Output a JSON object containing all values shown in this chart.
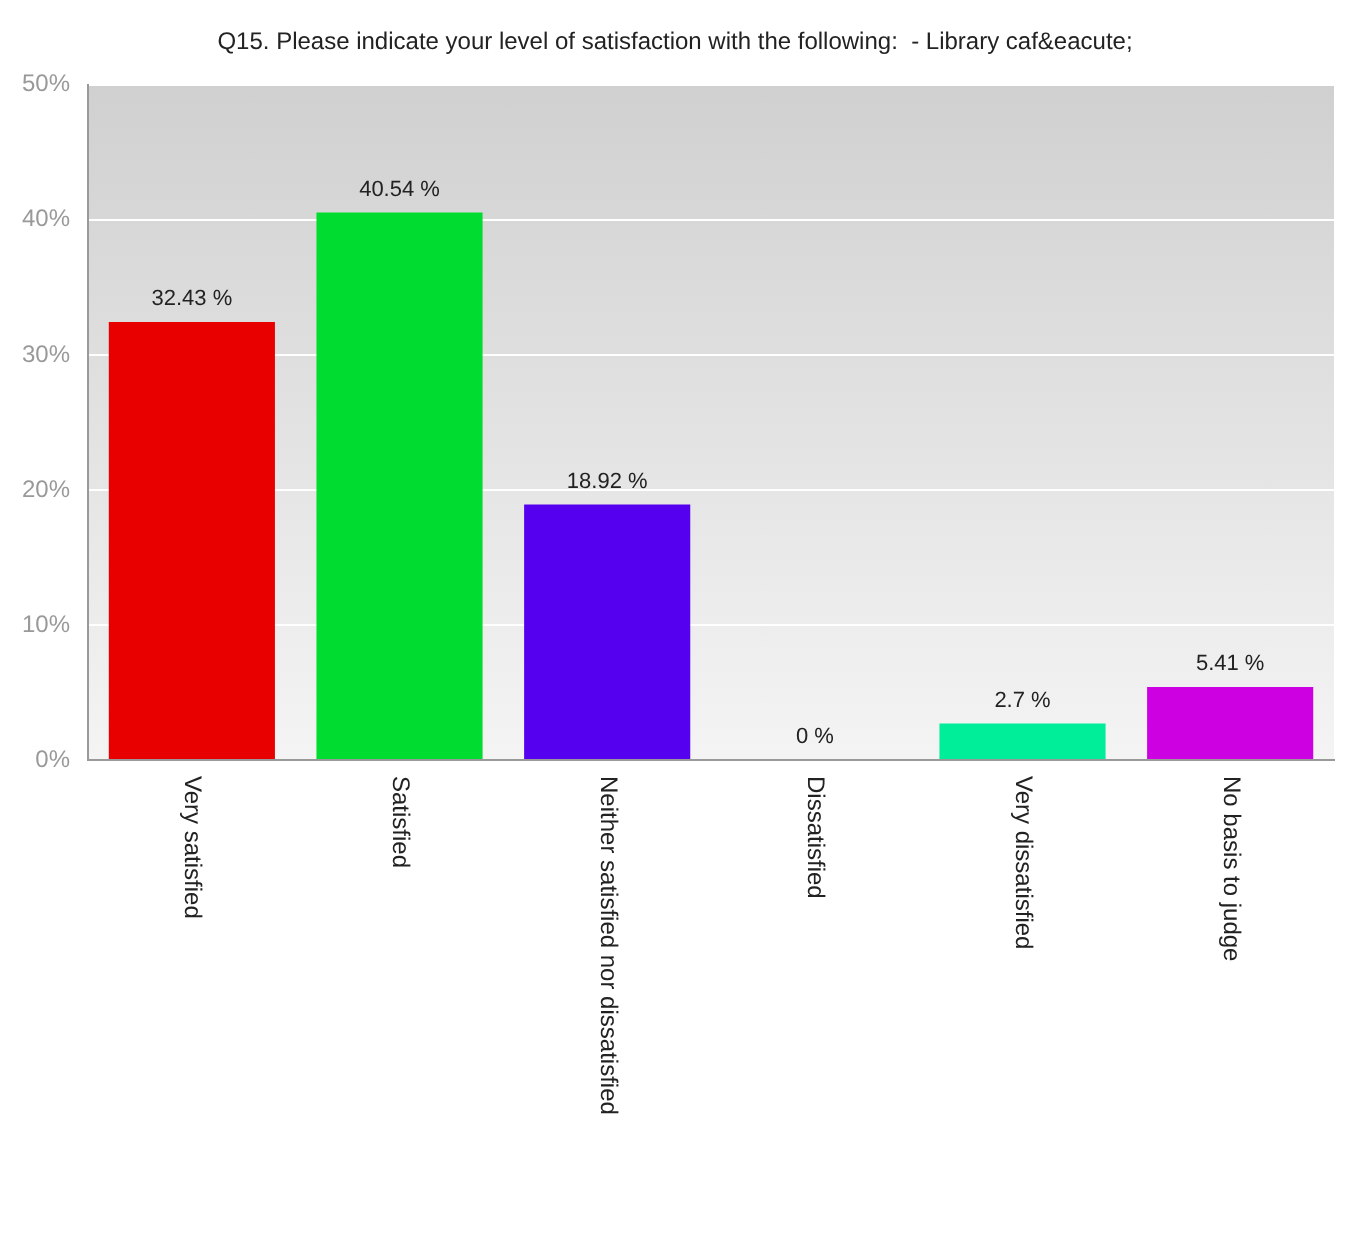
{
  "chart_data": {
    "type": "bar",
    "title": "Q15. Please indicate your level of satisfaction with the following:  - Library caf&eacute;",
    "categories": [
      "Very satisfied",
      "Satisfied",
      "Neither satisfied nor dissatisfied",
      "Dissatisfied",
      "Very dissatisfied",
      "No basis to judge"
    ],
    "values": [
      32.43,
      40.54,
      18.92,
      0,
      2.7,
      5.41
    ],
    "value_labels": [
      "32.43 %",
      "40.54 %",
      "18.92 %",
      "0 %",
      "2.7 %",
      "5.41 %"
    ],
    "colors": [
      "#e80000",
      "#00dd30",
      "#5500ee",
      "#ff8800",
      "#00ee99",
      "#cc00e0"
    ],
    "ylim": [
      0,
      50
    ],
    "yticks": [
      {
        "value": 0,
        "label": "0%"
      },
      {
        "value": 10,
        "label": "10%"
      },
      {
        "value": 20,
        "label": "20%"
      },
      {
        "value": 30,
        "label": "30%"
      },
      {
        "value": 40,
        "label": "40%"
      },
      {
        "value": 50,
        "label": "50%"
      }
    ],
    "grid": "y",
    "legend": false
  }
}
